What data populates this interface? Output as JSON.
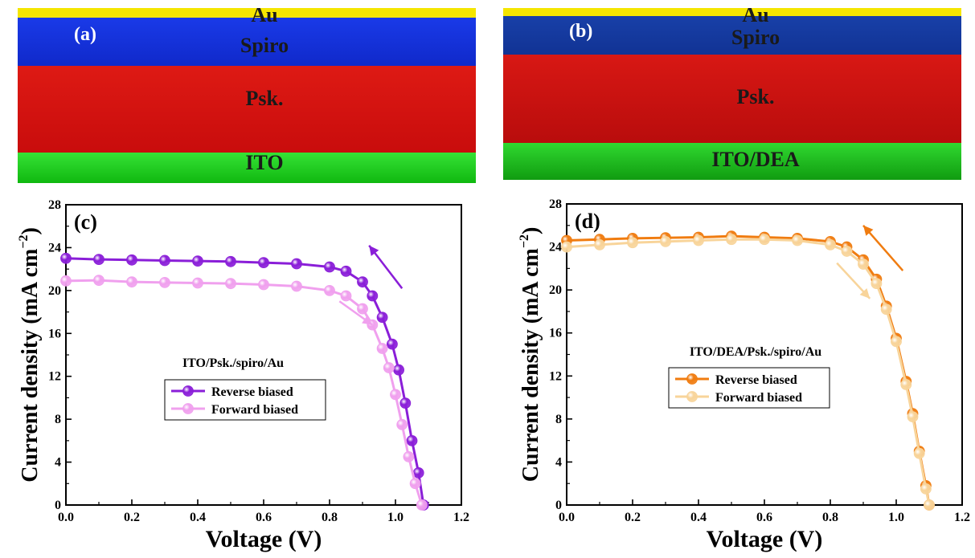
{
  "panels_top": [
    {
      "id": "a",
      "label": "(a)",
      "layers": {
        "au": "Au",
        "spiro": "Spiro",
        "psk": "Psk.",
        "sub": "ITO"
      }
    },
    {
      "id": "b",
      "label": "(b)",
      "layers": {
        "au": "Au",
        "spiro": "Spiro",
        "psk": "Psk.",
        "sub": "ITO/DEA"
      }
    }
  ],
  "colors": {
    "au": "#f5e600",
    "spiro": "#1030e0",
    "psk": "#d41010",
    "ito": "#18d418",
    "purple_reverse": "#8a1ed8",
    "pink_forward": "#f0a0ee",
    "orange_reverse": "#f07c10",
    "peach_forward": "#f8d49a"
  },
  "chart_data": [
    {
      "type": "line",
      "panel_label": "(c)",
      "title": "ITO/Psk./spiro/Au",
      "xlabel": "Voltage (V)",
      "ylabel": "Current density (mA cm",
      "ylabel_sup": "−2",
      "ylabel_close": ")",
      "xlim": [
        0,
        1.2
      ],
      "ylim": [
        0,
        28
      ],
      "xticks": [
        "0.0",
        "0.2",
        "0.4",
        "0.6",
        "0.8",
        "1.0",
        "1.2"
      ],
      "yticks": [
        "0",
        "4",
        "8",
        "12",
        "16",
        "20",
        "24",
        "28"
      ],
      "legend_position": "center",
      "series": [
        {
          "name": "Reverse biased",
          "color": "#8a1ed8",
          "x": [
            0.0,
            0.1,
            0.2,
            0.3,
            0.4,
            0.5,
            0.6,
            0.7,
            0.8,
            0.85,
            0.9,
            0.93,
            0.96,
            0.99,
            1.01,
            1.03,
            1.05,
            1.07,
            1.085
          ],
          "y": [
            23.0,
            22.9,
            22.85,
            22.8,
            22.75,
            22.7,
            22.6,
            22.5,
            22.2,
            21.8,
            20.8,
            19.5,
            17.5,
            15.0,
            12.6,
            9.5,
            6.0,
            3.0,
            0.0
          ]
        },
        {
          "name": "Forward biased",
          "color": "#f0a0ee",
          "x": [
            0.0,
            0.1,
            0.2,
            0.3,
            0.4,
            0.5,
            0.6,
            0.7,
            0.8,
            0.85,
            0.9,
            0.93,
            0.96,
            0.98,
            1.0,
            1.02,
            1.04,
            1.06,
            1.08
          ],
          "y": [
            20.9,
            20.95,
            20.8,
            20.75,
            20.7,
            20.65,
            20.55,
            20.4,
            20.0,
            19.5,
            18.3,
            16.8,
            14.6,
            12.8,
            10.3,
            7.5,
            4.5,
            2.0,
            0.0
          ]
        }
      ]
    },
    {
      "type": "line",
      "panel_label": "(d)",
      "title": "ITO/DEA/Psk./spiro/Au",
      "xlabel": "Voltage (V)",
      "ylabel": "Current density (mA cm",
      "ylabel_sup": "−2",
      "ylabel_close": ")",
      "xlim": [
        0,
        1.2
      ],
      "ylim": [
        0,
        28
      ],
      "xticks": [
        "0.0",
        "0.2",
        "0.4",
        "0.6",
        "0.8",
        "1.0",
        "1.2"
      ],
      "yticks": [
        "0",
        "4",
        "8",
        "12",
        "16",
        "20",
        "24",
        "28"
      ],
      "legend_position": "center",
      "series": [
        {
          "name": "Reverse biased",
          "color": "#f07c10",
          "x": [
            0.0,
            0.1,
            0.2,
            0.3,
            0.4,
            0.5,
            0.6,
            0.7,
            0.8,
            0.85,
            0.9,
            0.94,
            0.97,
            1.0,
            1.03,
            1.05,
            1.07,
            1.09,
            1.1
          ],
          "y": [
            24.6,
            24.7,
            24.8,
            24.85,
            24.9,
            25.0,
            24.9,
            24.8,
            24.5,
            24.0,
            22.8,
            21.0,
            18.5,
            15.5,
            11.5,
            8.5,
            5.0,
            1.8,
            0.0
          ]
        },
        {
          "name": "Forward biased",
          "color": "#f8d49a",
          "x": [
            0.0,
            0.1,
            0.2,
            0.3,
            0.4,
            0.5,
            0.6,
            0.7,
            0.8,
            0.85,
            0.9,
            0.94,
            0.97,
            1.0,
            1.03,
            1.05,
            1.07,
            1.09,
            1.1
          ],
          "y": [
            24.0,
            24.2,
            24.4,
            24.5,
            24.6,
            24.7,
            24.7,
            24.6,
            24.2,
            23.6,
            22.4,
            20.6,
            18.2,
            15.2,
            11.2,
            8.2,
            4.8,
            1.5,
            0.0
          ]
        }
      ]
    }
  ]
}
